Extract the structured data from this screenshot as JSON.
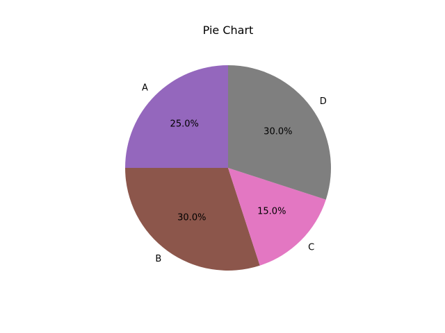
{
  "chart_data": {
    "type": "pie",
    "title": "Pie Chart",
    "labels": [
      "A",
      "B",
      "C",
      "D"
    ],
    "values": [
      25.0,
      30.0,
      15.0,
      30.0
    ],
    "percent_labels": [
      "25.0%",
      "30.0%",
      "15.0%",
      "30.0%"
    ],
    "colors": [
      "#9467bd",
      "#8c564b",
      "#e377c2",
      "#7f7f7f"
    ],
    "start_angle_deg": 90,
    "direction": "counterclockwise",
    "legend": "none"
  }
}
